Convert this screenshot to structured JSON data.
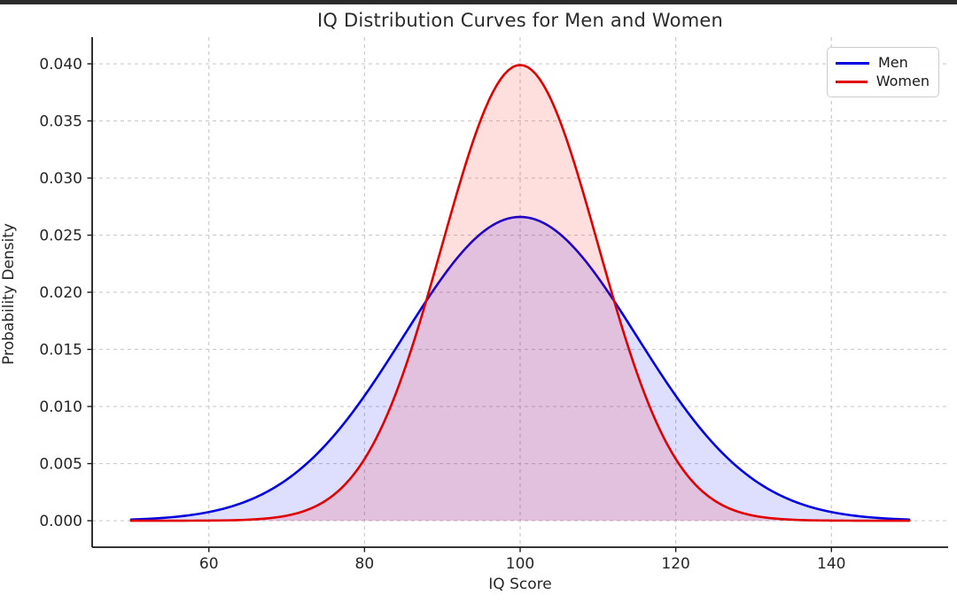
{
  "page": {
    "background": "#ffffff",
    "top_bar_color": "#2b2b2b"
  },
  "chart_data": {
    "type": "line",
    "title": "IQ Distribution Curves for Men and Women",
    "xlabel": "IQ Score",
    "ylabel": "Probability Density",
    "xlim": [
      45,
      155
    ],
    "ylim": [
      -0.00232,
      0.04233
    ],
    "xticks": [
      60,
      80,
      100,
      120,
      140
    ],
    "xtick_labels": [
      "60",
      "80",
      "100",
      "120",
      "140"
    ],
    "yticks": [
      0.0,
      0.005,
      0.01,
      0.015,
      0.02,
      0.025,
      0.03,
      0.035,
      0.04
    ],
    "ytick_labels": [
      "0.000",
      "0.005",
      "0.010",
      "0.015",
      "0.020",
      "0.025",
      "0.030",
      "0.035",
      "0.040"
    ],
    "grid": true,
    "grid_color": "#cccccc",
    "spine_color": "#1a1a1a",
    "legend": {
      "position": "upper right",
      "entries": [
        "Men",
        "Women"
      ]
    },
    "series": [
      {
        "name": "Men",
        "color": "#0000e0",
        "fill_color": "#0000ff",
        "fill_opacity": 0.13,
        "distribution": "normal",
        "mean": 100,
        "std": 15,
        "x_range": [
          50,
          150
        ],
        "peak_density": 0.0266,
        "sample_x": [
          50,
          55,
          60,
          65,
          70,
          75,
          80,
          85,
          90,
          95,
          100,
          105,
          110,
          115,
          120,
          125,
          130,
          135,
          140,
          145,
          150
        ],
        "sample_y": [
          0.000103,
          0.000295,
          0.00076,
          0.001748,
          0.003599,
          0.006632,
          0.010934,
          0.016131,
          0.021297,
          0.025159,
          0.026596,
          0.025159,
          0.021297,
          0.016131,
          0.010934,
          0.006632,
          0.003599,
          0.001748,
          0.00076,
          0.000295,
          0.000103
        ]
      },
      {
        "name": "Women",
        "color": "#e00000",
        "fill_color": "#ff0000",
        "fill_opacity": 0.13,
        "distribution": "normal",
        "mean": 100,
        "std": 10,
        "x_range": [
          50,
          150
        ],
        "peak_density": 0.0399,
        "sample_x": [
          50,
          55,
          60,
          65,
          70,
          75,
          80,
          85,
          90,
          95,
          100,
          105,
          110,
          115,
          120,
          125,
          130,
          135,
          140,
          145,
          150
        ],
        "sample_y": [
          1.5e-07,
          1.6e-06,
          1.34e-05,
          8.73e-05,
          0.000443,
          0.001753,
          0.005399,
          0.012952,
          0.024197,
          0.035207,
          0.039894,
          0.035207,
          0.024197,
          0.012952,
          0.005399,
          0.001753,
          0.000443,
          8.73e-05,
          1.34e-05,
          1.6e-06,
          1.5e-07
        ]
      }
    ]
  }
}
